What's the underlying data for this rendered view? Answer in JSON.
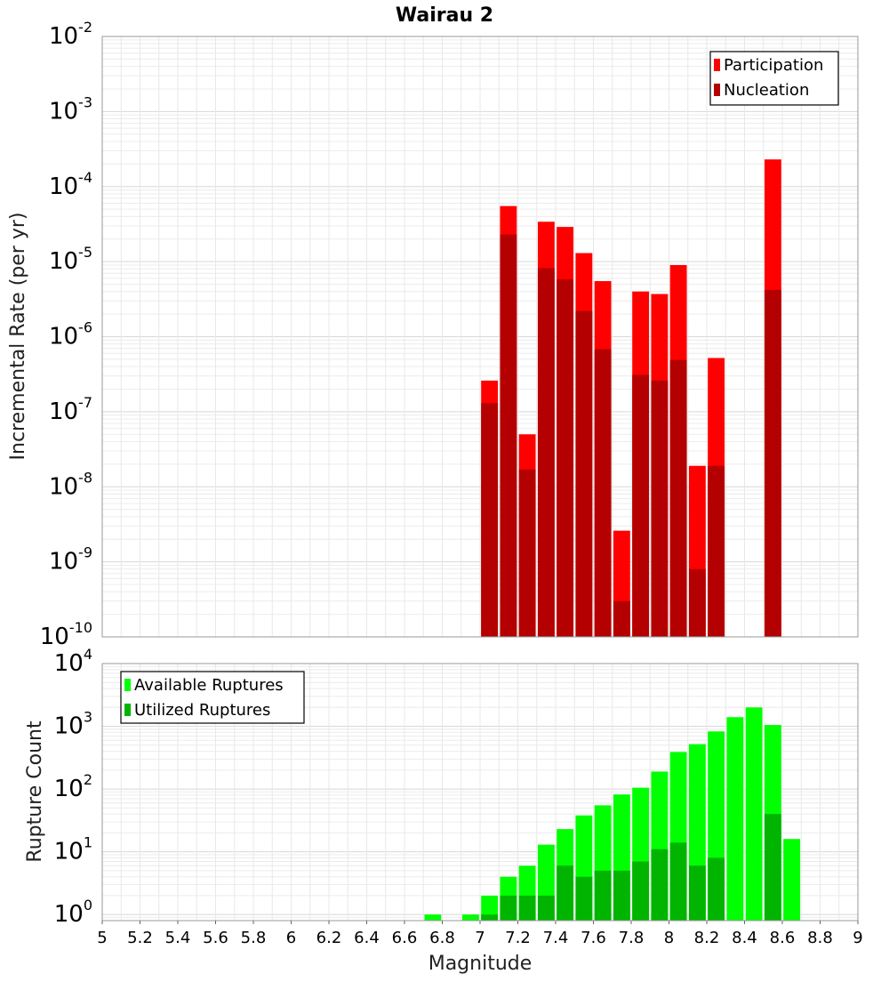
{
  "chart_data": [
    {
      "type": "bar",
      "title": "Wairau 2",
      "xlabel": "Magnitude",
      "ylabel": "Incremental Rate (per yr)",
      "yscale": "log",
      "xlim": [
        5,
        9
      ],
      "ylim": [
        1e-10,
        0.01
      ],
      "bin_width": 0.1,
      "grid": true,
      "legend_position": "top-right",
      "x_ticks": [
        "5",
        "5.2",
        "5.4",
        "5.6",
        "5.8",
        "6",
        "6.2",
        "6.4",
        "6.6",
        "6.8",
        "7",
        "7.2",
        "7.4",
        "7.6",
        "7.8",
        "8",
        "8.2",
        "8.4",
        "8.6",
        "8.8",
        "9"
      ],
      "y_ticks": [
        {
          "base": "10",
          "exp": "-10"
        },
        {
          "base": "10",
          "exp": "-9"
        },
        {
          "base": "10",
          "exp": "-8"
        },
        {
          "base": "10",
          "exp": "-7"
        },
        {
          "base": "10",
          "exp": "-6"
        },
        {
          "base": "10",
          "exp": "-5"
        },
        {
          "base": "10",
          "exp": "-4"
        },
        {
          "base": "10",
          "exp": "-3"
        },
        {
          "base": "10",
          "exp": "-2"
        }
      ],
      "x": [
        7.05,
        7.15,
        7.25,
        7.35,
        7.45,
        7.55,
        7.65,
        7.75,
        7.85,
        7.95,
        8.05,
        8.15,
        8.25,
        8.55
      ],
      "series": [
        {
          "name": "Participation",
          "color": "#ff0000",
          "values": [
            2.6e-07,
            5.5e-05,
            5e-08,
            3.4e-05,
            2.9e-05,
            1.3e-05,
            5.5e-06,
            2.6e-09,
            4e-06,
            3.7e-06,
            9e-06,
            1.9e-08,
            5.2e-07,
            0.00023
          ]
        },
        {
          "name": "Nucleation",
          "color": "#b40000",
          "values": [
            1.3e-07,
            2.3e-05,
            1.7e-08,
            8.2e-06,
            5.8e-06,
            2.2e-06,
            6.8e-07,
            3e-10,
            3.1e-07,
            2.6e-07,
            4.9e-07,
            8e-10,
            1.9e-08,
            4.2e-06
          ]
        }
      ]
    },
    {
      "type": "bar",
      "title": "",
      "xlabel": "Magnitude",
      "ylabel": "Rupture Count",
      "yscale": "log",
      "xlim": [
        5,
        9
      ],
      "ylim": [
        0.8,
        10000
      ],
      "bin_width": 0.1,
      "grid": true,
      "legend_position": "top-left",
      "y_ticks": [
        {
          "base": "10",
          "exp": "0"
        },
        {
          "base": "10",
          "exp": "1"
        },
        {
          "base": "10",
          "exp": "2"
        },
        {
          "base": "10",
          "exp": "3"
        },
        {
          "base": "10",
          "exp": "4"
        }
      ],
      "x": [
        6.75,
        6.95,
        7.05,
        7.15,
        7.25,
        7.35,
        7.45,
        7.55,
        7.65,
        7.75,
        7.85,
        7.95,
        8.05,
        8.15,
        8.25,
        8.35,
        8.45,
        8.55,
        8.65
      ],
      "series": [
        {
          "name": "Available Ruptures",
          "color": "#00ff00",
          "values": [
            1,
            1,
            2,
            4,
            6,
            13,
            23,
            38,
            55,
            82,
            105,
            190,
            390,
            520,
            830,
            1400,
            2000,
            1050,
            16
          ]
        },
        {
          "name": "Utilized Ruptures",
          "color": "#00b400",
          "values": [
            0,
            0,
            1,
            2,
            2,
            2,
            6,
            4,
            5,
            5,
            7,
            11,
            14,
            6,
            8,
            0,
            0,
            40,
            0
          ]
        }
      ]
    }
  ]
}
